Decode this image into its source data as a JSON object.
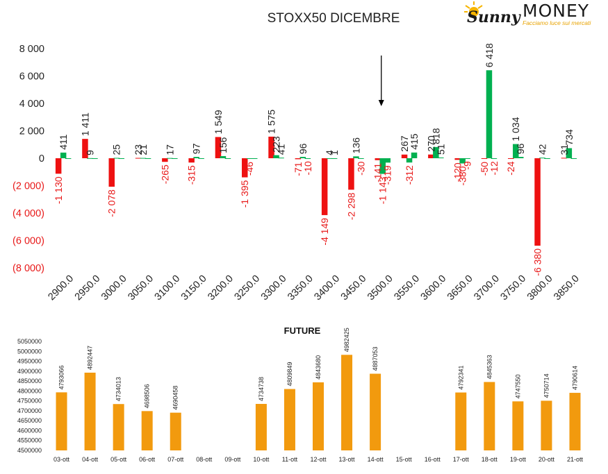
{
  "logo": {
    "brand_a": "Sunny",
    "brand_b": "MONEY",
    "tagline": "Facciamo luce sui mercati"
  },
  "colors": {
    "positive": "#00b050",
    "negative": "#ee1111",
    "future_bar": "#f29a0e",
    "axis_text": "#222222",
    "negative_text": "#e81919"
  },
  "chart_data": [
    {
      "type": "bar",
      "title": "STOXX50 DICEMBRE",
      "categories": [
        "2900.0",
        "2950.0",
        "3000.0",
        "3050.0",
        "3100.0",
        "3150.0",
        "3200.0",
        "3250.0",
        "3300.0",
        "3350.0",
        "3400.0",
        "3450.0",
        "3500.0",
        "3550.0",
        "3600.0",
        "3650.0",
        "3700.0",
        "3750.0",
        "3800.0",
        "3850.0"
      ],
      "ylim": [
        -8000,
        8000
      ],
      "yticks": [
        "8 000",
        "6 000",
        "4 000",
        "2 000",
        "0",
        "(2 000)",
        "(4 000)",
        "(6 000)",
        "(8 000)"
      ],
      "marker_strike": "3500.0",
      "series": [
        {
          "color": "red",
          "values": [
            -1130,
            1411,
            -2078,
            23,
            -265,
            -315,
            1549,
            -1395,
            1575,
            -71,
            -4149,
            -2298,
            -141,
            267,
            270,
            -120,
            -50,
            -24,
            -6380,
            31
          ],
          "labels": [
            "-1 130",
            "1 411",
            "-2 078",
            "23",
            "-265",
            "-315",
            "1 549",
            "-1 395",
            "1 575",
            "-71",
            "-4 149",
            "-2 298",
            "-141",
            "267",
            "270",
            "-120",
            "-50",
            "-24",
            "-6 380",
            "31"
          ]
        },
        {
          "color": "green",
          "values": [
            411,
            9,
            25,
            21,
            17,
            97,
            156,
            -46,
            223,
            96,
            4,
            136,
            -1143,
            -312,
            818,
            -380,
            6418,
            1034,
            42,
            734
          ],
          "labels": [
            "411",
            "9",
            "25",
            "21",
            "17",
            "97",
            "156",
            "-46",
            "223",
            "96",
            "4",
            "136",
            "-1 143",
            "-312",
            "818",
            "-380",
            "6 418",
            "1 034",
            "42",
            "734"
          ]
        },
        {
          "color": "green",
          "values": [
            0,
            0,
            0,
            0,
            0,
            0,
            0,
            0,
            41,
            -10,
            1,
            -30,
            -319,
            415,
            51,
            -9,
            -12,
            96,
            0,
            0
          ],
          "labels": [
            "",
            "",
            "",
            "",
            "",
            "",
            "",
            "",
            "41",
            "-10",
            "1",
            "-30",
            "-319",
            "415",
            "51",
            "-9",
            "-12",
            "96",
            "",
            ""
          ]
        }
      ]
    },
    {
      "type": "bar",
      "title": "FUTURE",
      "categories": [
        "03-ott",
        "04-ott",
        "05-ott",
        "06-ott",
        "07-ott",
        "08-ott",
        "09-ott",
        "10-ott",
        "11-ott",
        "12-ott",
        "13-ott",
        "14-ott",
        "15-ott",
        "16-ott",
        "17-ott",
        "18-ott",
        "19-ott",
        "20-ott",
        "21-ott"
      ],
      "values": [
        4793066,
        4892447,
        4734013,
        4698506,
        4690458,
        null,
        null,
        4734738,
        4809849,
        4843680,
        4982425,
        4887053,
        null,
        null,
        4792341,
        4845363,
        4747550,
        4750714,
        4790614
      ],
      "labels": [
        "4793066",
        "4892447",
        "4734013",
        "4698506",
        "4690458",
        "",
        "",
        "4734738",
        "4809849",
        "4843680",
        "4982425",
        "4887053",
        "",
        "",
        "4792341",
        "4845363",
        "4747550",
        "4750714",
        "4790614"
      ],
      "ylim": [
        4500000,
        5050000
      ],
      "yticks": [
        "5050000",
        "5000000",
        "4950000",
        "4900000",
        "4850000",
        "4800000",
        "4750000",
        "4700000",
        "4650000",
        "4600000",
        "4550000",
        "4500000"
      ]
    }
  ]
}
